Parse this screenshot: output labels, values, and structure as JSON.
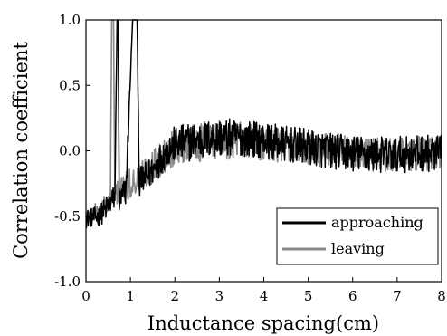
{
  "chart_data": {
    "type": "line",
    "title": "",
    "xlabel": "Inductance spacing(cm)",
    "ylabel": "Correlation coefficient",
    "xlim": [
      0,
      8
    ],
    "ylim": [
      -1.0,
      1.0
    ],
    "x_ticks": [
      "0",
      "1",
      "2",
      "3",
      "4",
      "5",
      "6",
      "7",
      "8"
    ],
    "y_ticks": [
      "1.0",
      "0.5",
      "0.0",
      "-0.5",
      "-1.0"
    ],
    "grid": false,
    "legend_position": "bottom-right",
    "series": [
      {
        "name": "approaching",
        "color": "#000000",
        "x": [
          0.0,
          0.3,
          0.5,
          0.65,
          0.7,
          0.72,
          0.75,
          0.9,
          1.05,
          1.1,
          1.15,
          1.2,
          1.5,
          1.8,
          2.0,
          2.5,
          3.0,
          3.5,
          4.0,
          4.5,
          5.0,
          5.5,
          6.0,
          6.5,
          7.0,
          7.5,
          8.0
        ],
        "y": [
          -0.52,
          -0.5,
          -0.42,
          -0.35,
          1.0,
          1.0,
          -0.4,
          -0.3,
          1.0,
          1.0,
          1.0,
          -0.25,
          -0.15,
          0.0,
          0.05,
          0.08,
          0.1,
          0.1,
          0.08,
          0.05,
          0.03,
          0.0,
          -0.02,
          -0.03,
          -0.03,
          -0.02,
          -0.02
        ],
        "spread": [
          0.07,
          0.08,
          0.1,
          0.1,
          0.0,
          0.0,
          0.1,
          0.12,
          0.0,
          0.0,
          0.0,
          0.12,
          0.12,
          0.13,
          0.14,
          0.15,
          0.15,
          0.14,
          0.14,
          0.14,
          0.14,
          0.14,
          0.14,
          0.14,
          0.14,
          0.14,
          0.14
        ]
      },
      {
        "name": "leaving",
        "color": "#888888",
        "x": [
          0.0,
          0.3,
          0.5,
          0.55,
          0.58,
          0.6,
          0.62,
          0.65,
          0.7,
          0.9,
          1.2,
          1.5,
          1.8,
          2.0,
          2.5,
          3.0,
          3.5,
          4.0,
          4.5,
          5.0,
          5.5,
          6.0,
          6.5,
          7.0,
          7.5,
          8.0
        ],
        "y": [
          -0.5,
          -0.47,
          -0.4,
          -0.38,
          1.0,
          1.0,
          1.0,
          -0.35,
          -0.32,
          -0.28,
          -0.2,
          -0.12,
          -0.02,
          0.03,
          0.06,
          0.08,
          0.08,
          0.06,
          0.03,
          0.01,
          0.0,
          -0.02,
          -0.03,
          -0.03,
          -0.02,
          -0.02
        ],
        "spread": [
          0.07,
          0.08,
          0.1,
          0.1,
          0.0,
          0.0,
          0.0,
          0.1,
          0.1,
          0.12,
          0.12,
          0.13,
          0.14,
          0.14,
          0.15,
          0.15,
          0.14,
          0.14,
          0.13,
          0.13,
          0.13,
          0.13,
          0.13,
          0.13,
          0.13,
          0.13
        ]
      }
    ]
  }
}
